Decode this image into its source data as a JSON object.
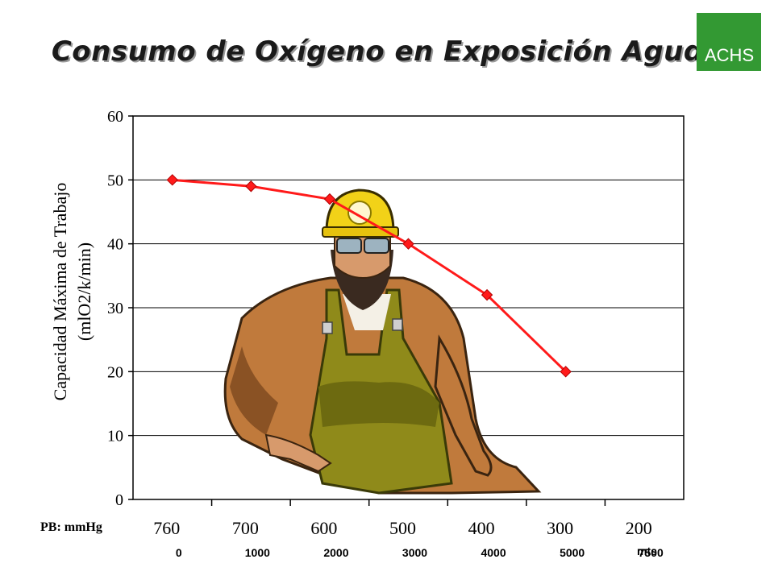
{
  "title": "Consumo de Oxígeno en Exposición Aguda",
  "logo": {
    "text": "ACHS",
    "color": "#339933"
  },
  "ylabel": {
    "line1": "Capacidad Máxima de Trabajo",
    "line2": "(mlO2/k/min)"
  },
  "pressure_label": "PB: mmHg",
  "altitude_unit": "mts",
  "illustration": "miner-clipart",
  "chart_data": {
    "type": "line",
    "categories": [
      "760",
      "700",
      "600",
      "500",
      "400",
      "300",
      "200"
    ],
    "secondary_categories": [
      "0",
      "1000",
      "2000",
      "3000",
      "4000",
      "5000",
      "7500"
    ],
    "series": [
      {
        "values": [
          50,
          49,
          47,
          40,
          32,
          20,
          null
        ],
        "color": "#ff1a1a"
      }
    ],
    "ylim": [
      0,
      60
    ],
    "yticks": [
      0,
      10,
      20,
      30,
      40,
      50,
      60
    ],
    "grid": true
  }
}
